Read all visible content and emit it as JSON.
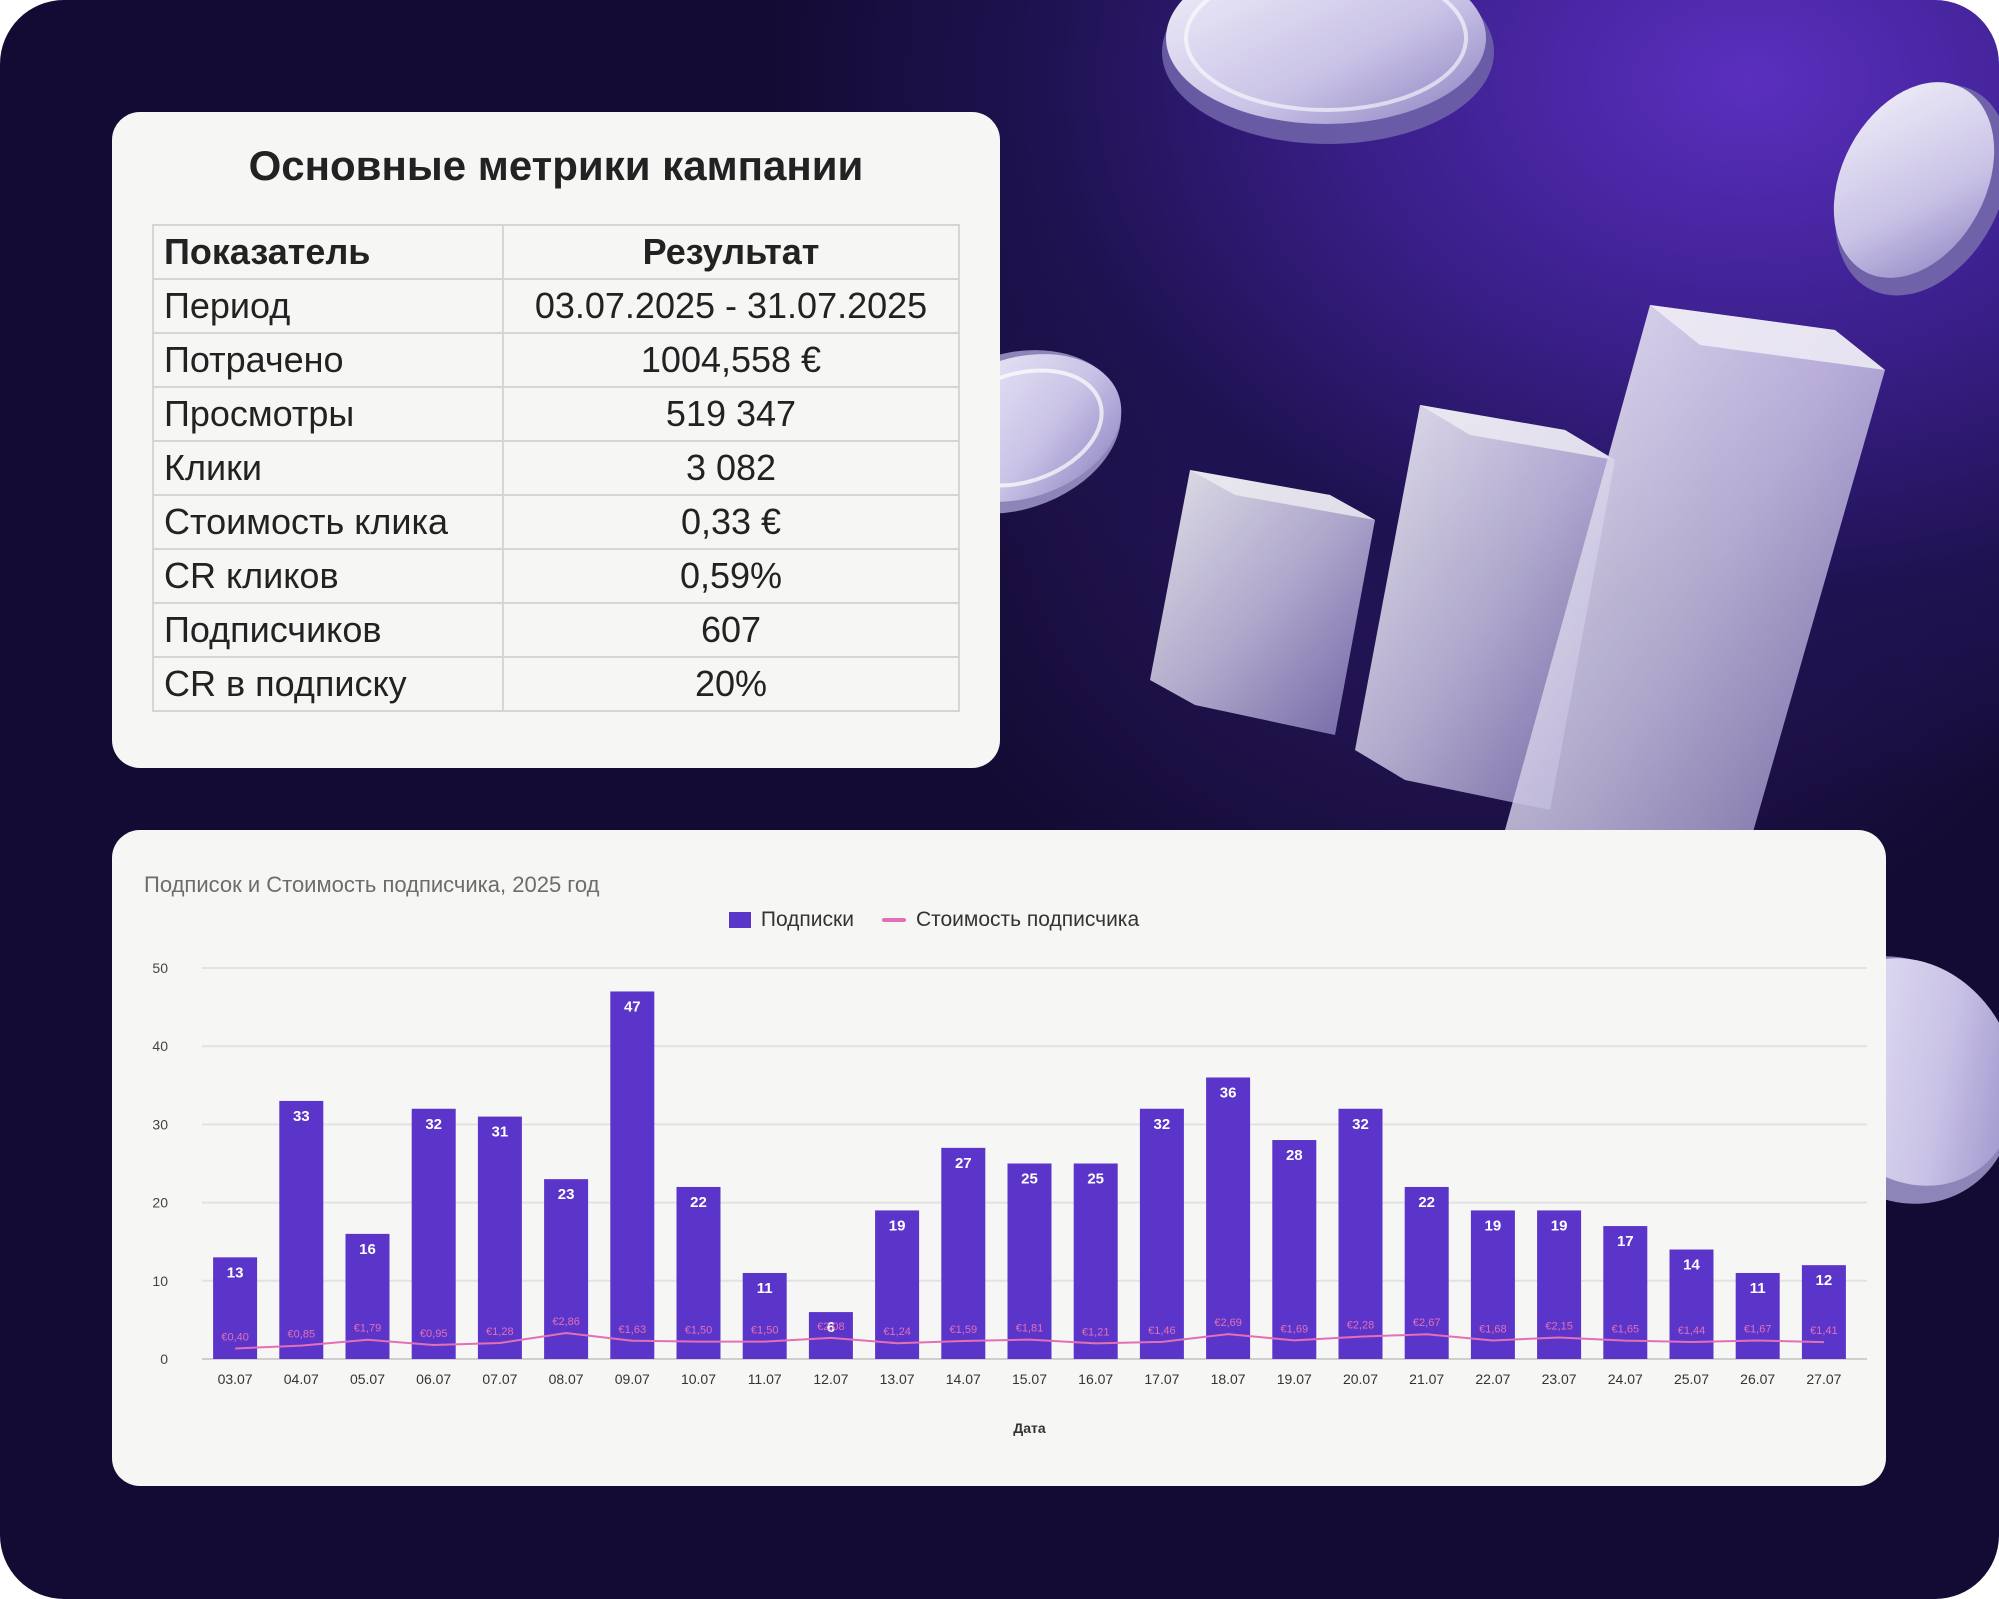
{
  "metrics": {
    "title": "Основные метрики кампании",
    "header": {
      "col1": "Показатель",
      "col2": "Результат"
    },
    "rows": [
      {
        "label": "Период",
        "value": "03.07.2025 - 31.07.2025"
      },
      {
        "label": "Потрачено",
        "value": "1004,558 €"
      },
      {
        "label": "Просмотры",
        "value": "519 347"
      },
      {
        "label": "Клики",
        "value": "3 082"
      },
      {
        "label": "Стоимость клика",
        "value": "0,33 €"
      },
      {
        "label": "CR кликов",
        "value": "0,59%"
      },
      {
        "label": "Подписчиков",
        "value": "607"
      },
      {
        "label": "CR в подписку",
        "value": "20%"
      }
    ]
  },
  "colors": {
    "bar": "#5b35c9",
    "line": "#e36fb6",
    "card": "#f6f6f4"
  },
  "chart_data": {
    "type": "bar",
    "title": "Подписок и Стоимость подписчика, 2025 год",
    "xlabel": "Дата",
    "ylabel": "",
    "ylim": [
      0,
      50
    ],
    "yticks": [
      0,
      10,
      20,
      30,
      40,
      50
    ],
    "grid": true,
    "legend_position": "top-center",
    "categories": [
      "03.07",
      "04.07",
      "05.07",
      "06.07",
      "07.07",
      "08.07",
      "09.07",
      "10.07",
      "11.07",
      "12.07",
      "13.07",
      "14.07",
      "15.07",
      "16.07",
      "17.07",
      "18.07",
      "19.07",
      "20.07",
      "21.07",
      "22.07",
      "23.07",
      "24.07",
      "25.07",
      "26.07",
      "27.07"
    ],
    "series": [
      {
        "name": "Подписки",
        "type": "bar",
        "values": [
          13,
          33,
          16,
          32,
          31,
          23,
          47,
          22,
          11,
          6,
          19,
          27,
          25,
          25,
          32,
          36,
          28,
          32,
          22,
          19,
          19,
          17,
          14,
          11,
          12
        ]
      },
      {
        "name": "Стоимость подписчика",
        "type": "line",
        "values": [
          0.4,
          0.85,
          1.79,
          0.95,
          1.28,
          2.86,
          1.63,
          1.5,
          1.5,
          2.08,
          1.24,
          1.59,
          1.81,
          1.21,
          1.46,
          2.69,
          1.69,
          2.28,
          2.67,
          1.68,
          2.15,
          1.65,
          1.44,
          1.67,
          1.41
        ],
        "labels": [
          "€0,40",
          "€0,85",
          "€1,79",
          "€0,95",
          "€1,28",
          "€2,86",
          "€1,63",
          "€1,50",
          "€1,50",
          "€2,08",
          "€1,24",
          "€1,59",
          "€1,81",
          "€1,21",
          "€1,46",
          "€2,69",
          "€1,69",
          "€2,28",
          "€2,67",
          "€1,68",
          "€2,15",
          "€1,65",
          "€1,44",
          "€1,67",
          "€1,41"
        ]
      }
    ]
  }
}
